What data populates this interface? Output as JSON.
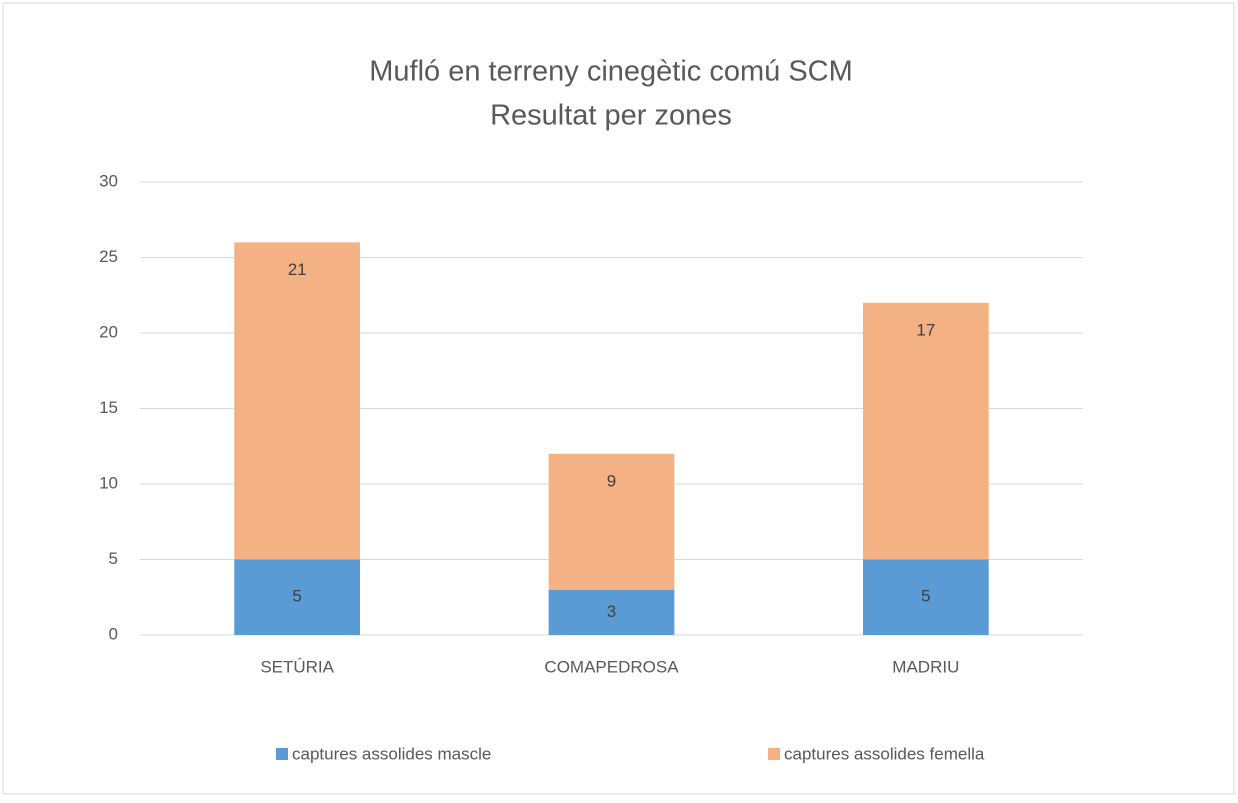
{
  "chart_data": {
    "type": "stacked_bar",
    "title": "Mufló en terreny cinegètic comú SCM",
    "subtitle": "Resultat per zones",
    "categories": [
      "SETÚRIA",
      "COMAPEDROSA",
      "MADRIU"
    ],
    "series": [
      {
        "name": "captures assolides mascle",
        "color": "#5b9bd5",
        "values": [
          5,
          3,
          5
        ]
      },
      {
        "name": "captures assolides femella",
        "color": "#f4b183",
        "values": [
          21,
          9,
          17
        ]
      }
    ],
    "ylim": [
      0,
      30
    ],
    "yticks": [
      0,
      5,
      10,
      15,
      20,
      25,
      30
    ],
    "grid": true,
    "legend": "bottom"
  }
}
